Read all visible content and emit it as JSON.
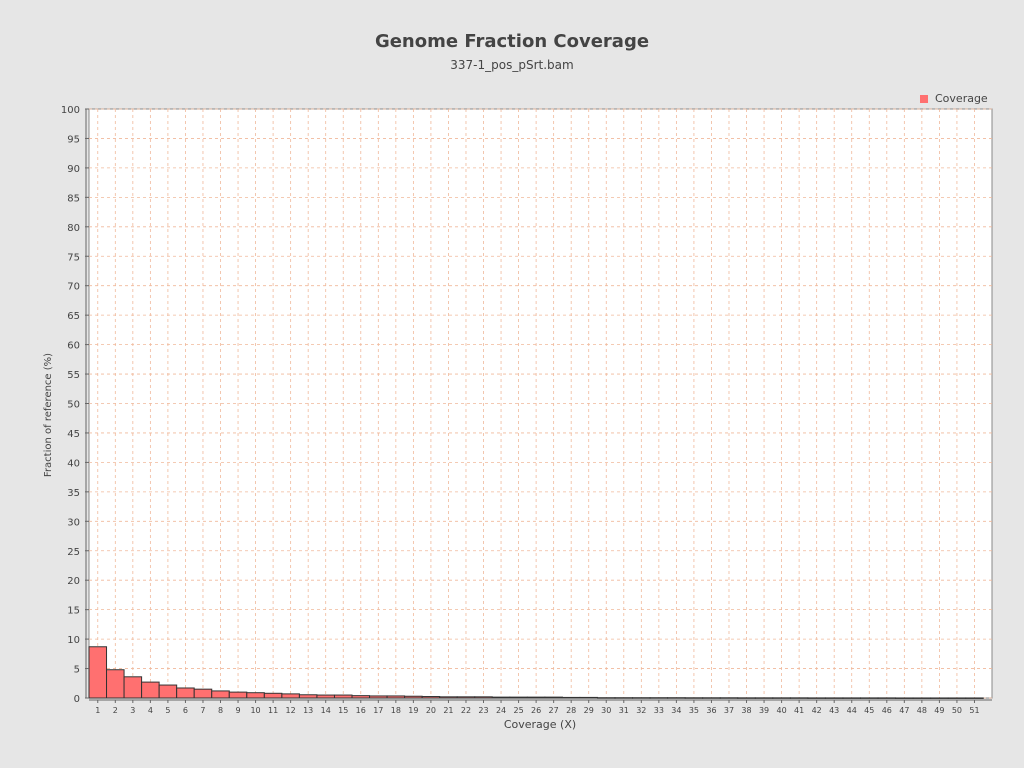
{
  "chart_data": {
    "type": "bar",
    "title": "Genome Fraction Coverage",
    "subtitle": "337-1_pos_pSrt.bam",
    "xlabel": "Coverage (X)",
    "ylabel": "Fraction of reference (%)",
    "legend": {
      "entries": [
        "Coverage"
      ],
      "placement": "top-right"
    },
    "ylim": [
      0,
      100
    ],
    "xlim": [
      0.5,
      52
    ],
    "yticks": [
      0,
      5,
      10,
      15,
      20,
      25,
      30,
      35,
      40,
      45,
      50,
      55,
      60,
      65,
      70,
      75,
      80,
      85,
      90,
      95,
      100
    ],
    "grid": true,
    "categories": [
      "1",
      "2",
      "3",
      "4",
      "5",
      "6",
      "7",
      "8",
      "9",
      "10",
      "11",
      "12",
      "13",
      "14",
      "15",
      "16",
      "17",
      "18",
      "19",
      "20",
      "21",
      "22",
      "23",
      "24",
      "25",
      "26",
      "27",
      "28",
      "29",
      "30",
      "31",
      "32",
      "33",
      "34",
      "35",
      "36",
      "37",
      "38",
      "39",
      "40",
      "41",
      "42",
      "43",
      "44",
      "45",
      "46",
      "47",
      "48",
      "49",
      "50",
      "51"
    ],
    "series": [
      {
        "name": "Coverage",
        "values": [
          8.7,
          4.8,
          3.6,
          2.7,
          2.2,
          1.7,
          1.5,
          1.2,
          1.0,
          0.9,
          0.8,
          0.7,
          0.55,
          0.5,
          0.5,
          0.4,
          0.35,
          0.35,
          0.3,
          0.25,
          0.2,
          0.2,
          0.2,
          0.15,
          0.15,
          0.15,
          0.15,
          0.1,
          0.1,
          0.05,
          0.05,
          0.05,
          0.05,
          0.05,
          0.04,
          0.04,
          0.04,
          0.03,
          0.03,
          0.03,
          0.03,
          0.02,
          0.02,
          0.02,
          0.02,
          0.02,
          0.01,
          0.01,
          0.01,
          0.01,
          0.01
        ]
      }
    ],
    "colors": {
      "bar_fill": "#ff7070",
      "bar_stroke": "#333333",
      "grid": "#f0b89a",
      "plot_background": "#ffffff",
      "page_background": "#e6e6e6",
      "text": "#444444"
    }
  }
}
